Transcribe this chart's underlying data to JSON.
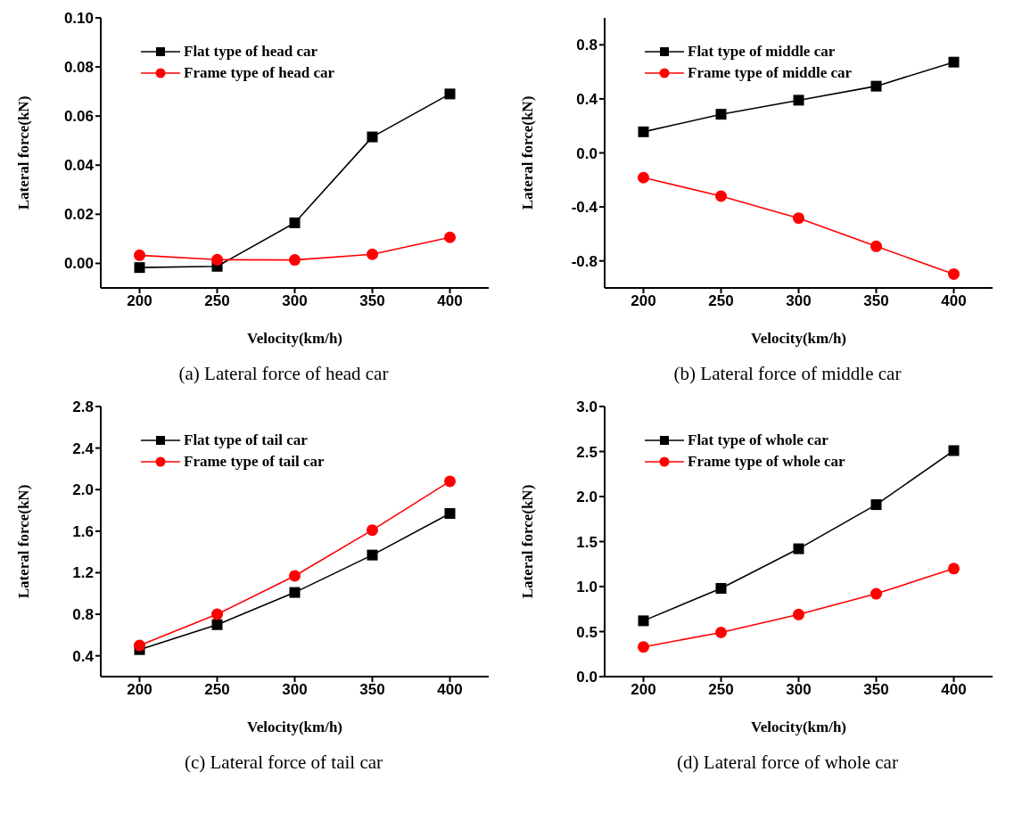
{
  "chart_data": [
    {
      "type": "line",
      "xlabel": "Velocity(km/h)",
      "ylabel": "Lateral force(kN)",
      "x": [
        200,
        250,
        300,
        350,
        400
      ],
      "xlim": [
        175,
        425
      ],
      "xticks": [
        200,
        250,
        300,
        350,
        400
      ],
      "ylim": [
        -0.01,
        0.1
      ],
      "yticks": [
        {
          "value": 0,
          "label": "0.00"
        },
        0.02,
        0.04,
        0.06,
        0.08,
        {
          "value": 0.1,
          "label": "0.10"
        }
      ],
      "legend": "top left",
      "grid": false,
      "annotations": [
        "(a) Lateral force of head car"
      ],
      "series": [
        {
          "name": "Flat type of head car",
          "color": "#000000",
          "marker": "square",
          "values": [
            -0.0017,
            -0.0012,
            0.0165,
            0.0515,
            0.069
          ]
        },
        {
          "name": "Frame type of head car",
          "color": "#ff0000",
          "marker": "circle",
          "values": [
            0.0033,
            0.0015,
            0.0014,
            0.0037,
            0.0106
          ]
        }
      ]
    },
    {
      "type": "line",
      "xlabel": "Velocity(km/h)",
      "ylabel": "Lateral force(kN)",
      "x": [
        200,
        250,
        300,
        350,
        400
      ],
      "xlim": [
        175,
        425
      ],
      "xticks": [
        200,
        250,
        300,
        350,
        400
      ],
      "ylim": [
        -1.0,
        1.0
      ],
      "yticks": [
        -0.8,
        -0.4,
        {
          "value": 0,
          "label": "0.0"
        },
        0.4,
        0.8
      ],
      "legend": "top left",
      "grid": false,
      "annotations": [
        "(b) Lateral force of middle car"
      ],
      "series": [
        {
          "name": "Flat type of middle car",
          "color": "#000000",
          "marker": "square",
          "values": [
            0.156,
            0.286,
            0.39,
            0.494,
            0.672
          ]
        },
        {
          "name": "Frame type of middle car",
          "color": "#ff0000",
          "marker": "circle",
          "values": [
            -0.183,
            -0.32,
            -0.483,
            -0.692,
            -0.897
          ]
        }
      ]
    },
    {
      "type": "line",
      "xlabel": "Velocity(km/h)",
      "ylabel": "Lateral force(kN)",
      "x": [
        200,
        250,
        300,
        350,
        400
      ],
      "xlim": [
        175,
        425
      ],
      "xticks": [
        200,
        250,
        300,
        350,
        400
      ],
      "ylim": [
        0.2,
        2.8
      ],
      "yticks": [
        0.4,
        0.8,
        1.2,
        1.6,
        {
          "value": 2,
          "label": "2.0"
        },
        2.4,
        2.8
      ],
      "legend": "top left",
      "grid": false,
      "annotations": [
        "(c) Lateral force of tail car"
      ],
      "series": [
        {
          "name": "Flat type of tail car",
          "color": "#000000",
          "marker": "square",
          "values": [
            0.46,
            0.7,
            1.01,
            1.37,
            1.77
          ]
        },
        {
          "name": "Frame type of tail car",
          "color": "#ff0000",
          "marker": "circle",
          "values": [
            0.5,
            0.8,
            1.17,
            1.61,
            2.08
          ]
        }
      ]
    },
    {
      "type": "line",
      "xlabel": "Velocity(km/h)",
      "ylabel": "Lateral force(kN)",
      "x": [
        200,
        250,
        300,
        350,
        400
      ],
      "xlim": [
        175,
        425
      ],
      "xticks": [
        200,
        250,
        300,
        350,
        400
      ],
      "ylim": [
        0.0,
        3.0
      ],
      "yticks": [
        {
          "value": 0,
          "label": "0.0"
        },
        0.5,
        {
          "value": 1,
          "label": "1.0"
        },
        1.5,
        {
          "value": 2,
          "label": "2.0"
        },
        2.5,
        {
          "value": 3,
          "label": "3.0"
        }
      ],
      "legend": "top left",
      "grid": false,
      "annotations": [
        "(d) Lateral force of whole car"
      ],
      "series": [
        {
          "name": "Flat type of whole car",
          "color": "#000000",
          "marker": "square",
          "values": [
            0.62,
            0.98,
            1.42,
            1.91,
            2.51
          ]
        },
        {
          "name": "Frame type of whole car",
          "color": "#ff0000",
          "marker": "circle",
          "values": [
            0.33,
            0.49,
            0.69,
            0.92,
            1.2
          ]
        }
      ]
    }
  ]
}
